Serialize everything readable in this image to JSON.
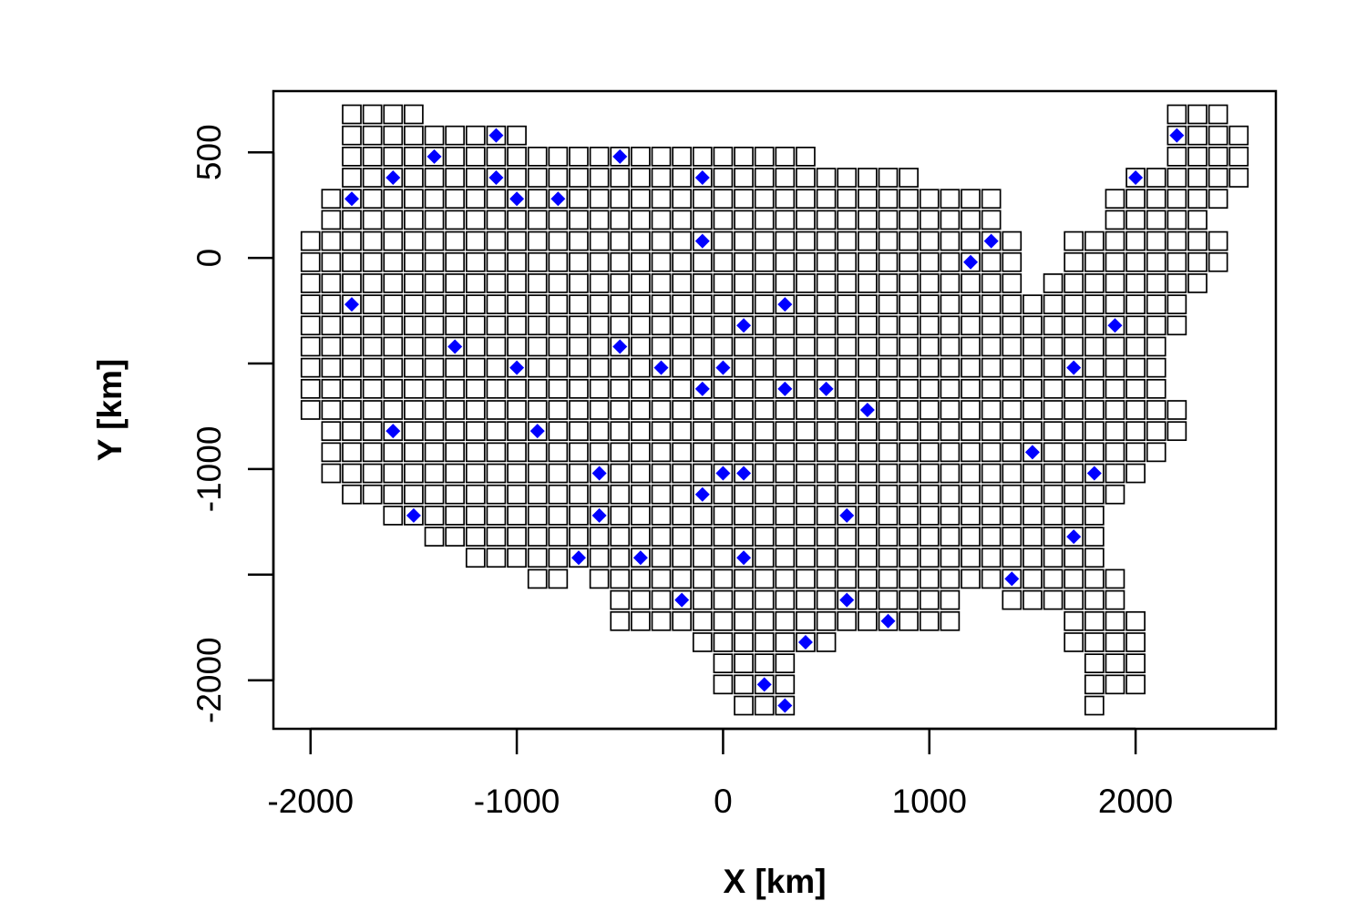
{
  "chart_data": {
    "type": "scatter",
    "xlabel": "X [km]",
    "ylabel": "Y [km]",
    "xlim": [
      -2180,
      2680
    ],
    "ylim": [
      -2230,
      790
    ],
    "xticks": [
      -2000,
      -1000,
      0,
      1000,
      2000
    ],
    "xtick_labels": [
      "-2000",
      "-1000",
      "0",
      "1000",
      "2000"
    ],
    "yticks": [
      -2000,
      -1000,
      0,
      500
    ],
    "ytick_labels": [
      "-2000",
      "-1000",
      "0",
      "500"
    ],
    "grid_spacing": 100,
    "series": [
      {
        "marker": "square",
        "grid_cell_x_min": -2000,
        "rows": [
          {
            "y": 680,
            "runs": [
              [
                -1800,
                -1500
              ],
              [
                2200,
                2400
              ]
            ]
          },
          {
            "y": 580,
            "runs": [
              [
                -1800,
                -1000
              ],
              [
                2200,
                2500
              ]
            ]
          },
          {
            "y": 480,
            "runs": [
              [
                -1800,
                400
              ],
              [
                2200,
                2500
              ]
            ]
          },
          {
            "y": 380,
            "runs": [
              [
                -1800,
                900
              ],
              [
                2000,
                2500
              ]
            ]
          },
          {
            "y": 280,
            "runs": [
              [
                -1900,
                1300
              ],
              [
                1900,
                2400
              ]
            ]
          },
          {
            "y": 180,
            "runs": [
              [
                -1900,
                1300
              ],
              [
                1900,
                2300
              ]
            ]
          },
          {
            "y": 80,
            "runs": [
              [
                -2000,
                1400
              ],
              [
                1700,
                2400
              ]
            ]
          },
          {
            "y": -20,
            "runs": [
              [
                -2000,
                1400
              ],
              [
                1700,
                2400
              ]
            ]
          },
          {
            "y": -120,
            "runs": [
              [
                -2000,
                1400
              ],
              [
                1600,
                2300
              ]
            ]
          },
          {
            "y": -220,
            "runs": [
              [
                -2000,
                2200
              ]
            ]
          },
          {
            "y": -320,
            "runs": [
              [
                -2000,
                2200
              ]
            ]
          },
          {
            "y": -420,
            "runs": [
              [
                -2000,
                2100
              ]
            ]
          },
          {
            "y": -520,
            "runs": [
              [
                -2000,
                2100
              ]
            ]
          },
          {
            "y": -620,
            "runs": [
              [
                -2000,
                2100
              ]
            ]
          },
          {
            "y": -720,
            "runs": [
              [
                -2000,
                2200
              ]
            ]
          },
          {
            "y": -820,
            "runs": [
              [
                -1900,
                2200
              ]
            ]
          },
          {
            "y": -920,
            "runs": [
              [
                -1900,
                2100
              ]
            ]
          },
          {
            "y": -1020,
            "runs": [
              [
                -1900,
                2000
              ]
            ]
          },
          {
            "y": -1120,
            "runs": [
              [
                -1800,
                1900
              ]
            ]
          },
          {
            "y": -1220,
            "runs": [
              [
                -1600,
                1800
              ]
            ]
          },
          {
            "y": -1320,
            "runs": [
              [
                -1400,
                1800
              ]
            ]
          },
          {
            "y": -1420,
            "runs": [
              [
                -1200,
                1800
              ]
            ]
          },
          {
            "y": -1520,
            "runs": [
              [
                -900,
                -800
              ],
              [
                -600,
                1900
              ]
            ]
          },
          {
            "y": -1620,
            "runs": [
              [
                -500,
                1100
              ],
              [
                1400,
                1900
              ]
            ]
          },
          {
            "y": -1720,
            "runs": [
              [
                -500,
                1100
              ],
              [
                1700,
                2000
              ]
            ]
          },
          {
            "y": -1820,
            "runs": [
              [
                -100,
                500
              ],
              [
                1700,
                2000
              ]
            ]
          },
          {
            "y": -1920,
            "runs": [
              [
                0,
                300
              ],
              [
                1800,
                2000
              ]
            ]
          },
          {
            "y": -2020,
            "runs": [
              [
                0,
                300
              ],
              [
                1800,
                2000
              ]
            ]
          },
          {
            "y": -2120,
            "runs": [
              [
                100,
                300
              ],
              [
                1800,
                1800
              ]
            ]
          }
        ]
      },
      {
        "marker": "filled diamond",
        "color": "#0000FF",
        "points": [
          [
            -1100,
            580
          ],
          [
            2200,
            580
          ],
          [
            -1400,
            480
          ],
          [
            -500,
            480
          ],
          [
            -1600,
            380
          ],
          [
            -1100,
            380
          ],
          [
            -100,
            380
          ],
          [
            2000,
            380
          ],
          [
            -1800,
            280
          ],
          [
            -1000,
            280
          ],
          [
            -800,
            280
          ],
          [
            -100,
            80
          ],
          [
            1300,
            80
          ],
          [
            1200,
            -20
          ],
          [
            -1800,
            -220
          ],
          [
            300,
            -220
          ],
          [
            100,
            -320
          ],
          [
            1900,
            -320
          ],
          [
            -1300,
            -420
          ],
          [
            -500,
            -420
          ],
          [
            -1000,
            -520
          ],
          [
            -300,
            -520
          ],
          [
            0,
            -520
          ],
          [
            1700,
            -520
          ],
          [
            -100,
            -620
          ],
          [
            300,
            -620
          ],
          [
            500,
            -620
          ],
          [
            700,
            -720
          ],
          [
            -1600,
            -820
          ],
          [
            -900,
            -820
          ],
          [
            1500,
            -920
          ],
          [
            -600,
            -1020
          ],
          [
            0,
            -1020
          ],
          [
            100,
            -1020
          ],
          [
            1800,
            -1020
          ],
          [
            -100,
            -1120
          ],
          [
            -1500,
            -1220
          ],
          [
            -600,
            -1220
          ],
          [
            600,
            -1220
          ],
          [
            1700,
            -1320
          ],
          [
            -700,
            -1420
          ],
          [
            -400,
            -1420
          ],
          [
            100,
            -1420
          ],
          [
            1400,
            -1520
          ],
          [
            -200,
            -1620
          ],
          [
            600,
            -1620
          ],
          [
            800,
            -1720
          ],
          [
            400,
            -1820
          ],
          [
            200,
            -2020
          ],
          [
            300,
            -2120
          ]
        ]
      }
    ]
  }
}
